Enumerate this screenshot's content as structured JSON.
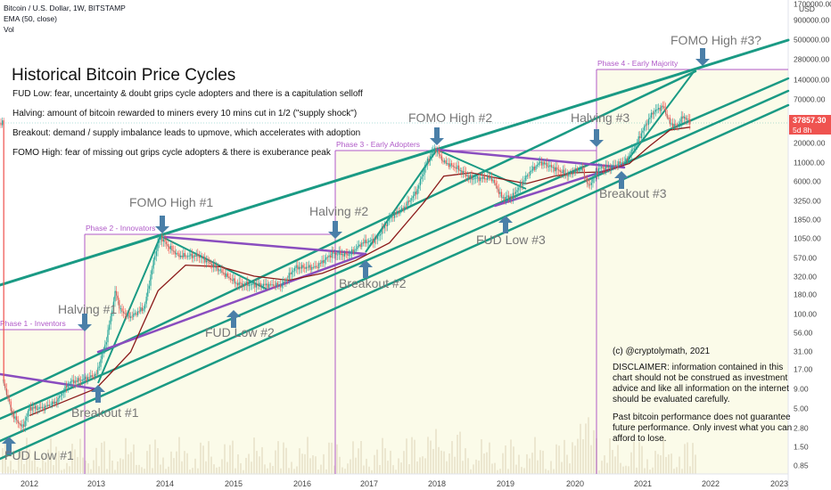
{
  "header": {
    "symbol": "Bitcoin / U.S. Dollar, 1W, BITSTAMP",
    "indicator": "EMA (50, close)",
    "volume": "Vol"
  },
  "price_tag": {
    "value": "37857.30",
    "countdown": "5d 8h"
  },
  "currency": "USD",
  "colors": {
    "background": "#ffffff",
    "phase_fill": "#fbfbe9",
    "candle_up": "#26a69a",
    "candle_down": "#ef5350",
    "trend_green": "#1a9a84",
    "trend_purple": "#8a4dbf",
    "ema_line": "#8b1a1a",
    "arrow": "#4a7fa8",
    "phase_line": "#b05ac8",
    "label_gray": "#777777",
    "text": "#131722"
  },
  "chart_data": {
    "type": "line",
    "title": "Historical Bitcoin Price Cycles",
    "y_scale": "log",
    "ylim": [
      0.6,
      1700000
    ],
    "xlim": [
      2011.6,
      2023.15
    ],
    "x_ticks": [
      "2012",
      "2013",
      "2014",
      "2015",
      "2016",
      "2017",
      "2018",
      "2019",
      "2020",
      "2021",
      "2022",
      "2023"
    ],
    "y_ticks": [
      "1700000.00",
      "900000.00",
      "500000.00",
      "280000.00",
      "140000.00",
      "70000.00",
      "37857.30",
      "20000.00",
      "11000.00",
      "6000.00",
      "3250.00",
      "1850.00",
      "1050.00",
      "570.00",
      "320.00",
      "180.00",
      "100.00",
      "56.00",
      "31.00",
      "17.00",
      "9.00",
      "5.00",
      "2.80",
      "1.50",
      "0.85"
    ],
    "price_series": {
      "name": "",
      "x": [
        2011.6,
        2011.75,
        2011.9,
        2012.0,
        2012.2,
        2012.4,
        2012.6,
        2012.8,
        2013.0,
        2013.15,
        2013.28,
        2013.35,
        2013.5,
        2013.7,
        2013.85,
        2013.93,
        2014.05,
        2014.2,
        2014.5,
        2014.8,
        2015.05,
        2015.4,
        2015.7,
        2015.9,
        2016.2,
        2016.45,
        2016.7,
        2016.9,
        2017.1,
        2017.3,
        2017.5,
        2017.7,
        2017.85,
        2017.97,
        2018.1,
        2018.3,
        2018.5,
        2018.8,
        2018.95,
        2019.1,
        2019.35,
        2019.5,
        2019.7,
        2019.9,
        2020.1,
        2020.2,
        2020.35,
        2020.55,
        2020.75,
        2020.9,
        2021.0,
        2021.15,
        2021.3,
        2021.4,
        2021.5,
        2021.6,
        2021.7
      ],
      "y": [
        12,
        4,
        2.8,
        5,
        5,
        6,
        11,
        12,
        14,
        45,
        200,
        110,
        90,
        120,
        600,
        1100,
        800,
        600,
        600,
        380,
        250,
        240,
        240,
        420,
        420,
        650,
        620,
        900,
        1000,
        1900,
        2500,
        4300,
        11000,
        17000,
        11000,
        9000,
        6500,
        6500,
        3500,
        3700,
        8000,
        11000,
        9000,
        7300,
        9000,
        5000,
        9000,
        9500,
        11500,
        19000,
        30000,
        50000,
        58000,
        37000,
        34000,
        45000,
        38000
      ]
    },
    "ema_series": {
      "name": "",
      "x": [
        2012.0,
        2012.5,
        2013.0,
        2013.5,
        2013.9,
        2014.3,
        2014.8,
        2015.3,
        2015.8,
        2016.3,
        2016.8,
        2017.3,
        2017.8,
        2018.1,
        2018.5,
        2018.9,
        2019.3,
        2019.7,
        2020.0,
        2020.4,
        2020.8,
        2021.1,
        2021.4,
        2021.7
      ],
      "y": [
        4,
        6,
        9,
        30,
        200,
        450,
        430,
        320,
        280,
        350,
        520,
        900,
        3000,
        7000,
        7800,
        6500,
        5500,
        7000,
        7800,
        8000,
        10500,
        18000,
        30000,
        33000
      ]
    },
    "annotations": [
      {
        "label": "FUD Low #1",
        "kind": "arrow-up"
      },
      {
        "label": "Halving #1",
        "kind": "arrow-down"
      },
      {
        "label": "Breakout #1",
        "kind": "arrow-up"
      },
      {
        "label": "FOMO High #1",
        "kind": "arrow-down"
      },
      {
        "label": "FUD Low #2",
        "kind": "arrow-up"
      },
      {
        "label": "Halving #2",
        "kind": "arrow-down"
      },
      {
        "label": "Breakout #2",
        "kind": "arrow-up"
      },
      {
        "label": "FOMO High #2",
        "kind": "arrow-down"
      },
      {
        "label": "FUD Low #3",
        "kind": "arrow-up"
      },
      {
        "label": "Halving #3",
        "kind": "arrow-down"
      },
      {
        "label": "Breakout #3",
        "kind": "arrow-up"
      },
      {
        "label": "FOMO High #3?",
        "kind": "arrow-down"
      }
    ],
    "phases": [
      {
        "label": "Phase 1 - Inventors"
      },
      {
        "label": "Phase 2 - Innovators"
      },
      {
        "label": "Phase 3 - Early Adopters"
      },
      {
        "label": "Phase 4 - Early Majority"
      }
    ]
  },
  "legend_notes": [
    "FUD Low: fear, uncertainty & doubt grips cycle adopters and there is a capitulation selloff",
    "Halving: amount of bitcoin rewarded to miners every 10 mins cut in 1/2 (\"supply shock\")",
    "Breakout: demand / supply imbalance leads to upmove, which accelerates with adoption",
    "FOMO High: fear of missing out grips cycle adopters & there is exuberance peak"
  ],
  "credit": "(c) @cryptolymath, 2021",
  "disclaimer": [
    "DISCLAIMER: information contained in this",
    "chart should not be construed as investment",
    "advice and like all information on the internet",
    "should be evaluated carefully.",
    "Past bitcoin performance does not guarantee",
    "future performance. Only invest what you can",
    "afford to lose."
  ]
}
